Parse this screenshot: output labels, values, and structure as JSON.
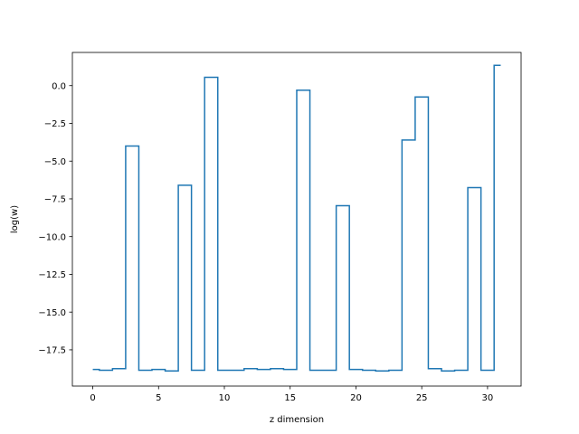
{
  "chart_data": {
    "type": "line",
    "drawstyle": "steps-mid",
    "title": "",
    "xlabel": "z dimension",
    "ylabel": "log(w)",
    "xlim": [
      -1.55,
      32.55
    ],
    "ylim": [
      -19.9,
      2.2
    ],
    "xticks": [
      0,
      5,
      10,
      15,
      20,
      25,
      30
    ],
    "xtick_labels": [
      "0",
      "5",
      "10",
      "15",
      "20",
      "25",
      "30"
    ],
    "yticks": [
      0.0,
      -2.5,
      -5.0,
      -7.5,
      -10.0,
      -12.5,
      -15.0,
      -17.5
    ],
    "ytick_labels": [
      "0.0",
      "−2.5",
      "−5.0",
      "−7.5",
      "−10.0",
      "−12.5",
      "−15.0",
      "−17.5"
    ],
    "grid": false,
    "line_color": "#1f77b4",
    "series": [
      {
        "name": "",
        "x": [
          0,
          1,
          2,
          3,
          4,
          5,
          6,
          7,
          8,
          9,
          10,
          11,
          12,
          13,
          14,
          15,
          16,
          17,
          18,
          19,
          20,
          21,
          22,
          23,
          24,
          25,
          26,
          27,
          28,
          29,
          30,
          31
        ],
        "y": [
          -18.8,
          -18.85,
          -18.75,
          -4.0,
          -18.85,
          -18.8,
          -18.9,
          -6.6,
          -18.85,
          0.55,
          -18.85,
          -18.85,
          -18.75,
          -18.8,
          -18.75,
          -18.8,
          -0.3,
          -18.85,
          -18.85,
          -7.95,
          -18.8,
          -18.85,
          -18.9,
          -18.85,
          -3.6,
          -0.75,
          -18.75,
          -18.9,
          -18.85,
          -6.75,
          -18.85,
          1.35
        ]
      }
    ]
  }
}
